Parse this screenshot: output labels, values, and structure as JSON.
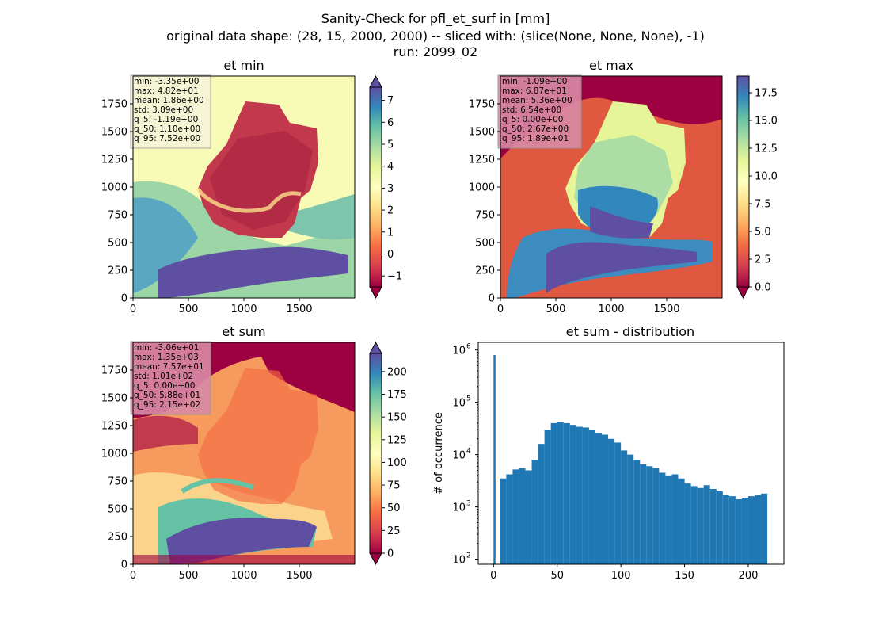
{
  "figure": {
    "title_lines": [
      "Sanity-Check for pfl_et_surf in [mm]",
      "original data shape: (28, 15, 2000, 2000) -- sliced with: (slice(None, None, None), -1)",
      "run: 2099_02"
    ]
  },
  "chart_data": [
    {
      "type": "heatmap",
      "title": "et min",
      "colormap": "Spectral",
      "x_ticks": [
        0,
        500,
        1000,
        1500
      ],
      "y_ticks": [
        0,
        250,
        500,
        750,
        1000,
        1250,
        1500,
        1750
      ],
      "xlim": [
        0,
        2000
      ],
      "ylim": [
        0,
        2000
      ],
      "colorbar": {
        "range": [
          -1.5,
          7.6
        ],
        "ticks": [
          -1,
          0,
          1,
          2,
          3,
          4,
          5,
          6,
          7
        ]
      },
      "stats_box_color": "#f5f5dc",
      "stats": [
        "min: -3.35e+00",
        "max: 4.82e+01",
        "mean: 1.86e+00",
        "std: 3.89e+00",
        "q_5: -1.19e+00",
        "q_50: 1.10e+00",
        "q_95: 7.52e+00"
      ]
    },
    {
      "type": "heatmap",
      "title": "et max",
      "colormap": "Spectral",
      "x_ticks": [
        0,
        500,
        1000,
        1500
      ],
      "y_ticks": [
        0,
        250,
        500,
        750,
        1000,
        1250,
        1500,
        1750
      ],
      "xlim": [
        0,
        2000
      ],
      "ylim": [
        0,
        2000
      ],
      "colorbar": {
        "range": [
          0,
          19
        ],
        "ticks": [
          "0.0",
          "2.5",
          "5.0",
          "7.5",
          "10.0",
          "12.5",
          "15.0",
          "17.5"
        ]
      },
      "stats_box_color": "#d98aa6",
      "stats": [
        "min: -1.09e+00",
        "max: 6.87e+01",
        "mean: 5.36e+00",
        "std: 6.54e+00",
        "q_5: 0.00e+00",
        "q_50: 2.67e+00",
        "q_95: 1.89e+01"
      ]
    },
    {
      "type": "heatmap",
      "title": "et sum",
      "colormap": "Spectral",
      "x_ticks": [
        0,
        500,
        1000,
        1500
      ],
      "y_ticks": [
        0,
        250,
        500,
        750,
        1000,
        1250,
        1500,
        1750
      ],
      "xlim": [
        0,
        2000
      ],
      "ylim": [
        0,
        2000
      ],
      "colorbar": {
        "range": [
          0,
          220
        ],
        "ticks": [
          0,
          25,
          50,
          75,
          100,
          125,
          150,
          175,
          200
        ]
      },
      "stats_box_color": "#d98aa6",
      "stats": [
        "min: -3.06e+01",
        "max: 1.35e+03",
        "mean: 7.57e+01",
        "std: 1.01e+02",
        "q_5: 0.00e+00",
        "q_50: 5.88e+01",
        "q_95: 2.15e+02"
      ]
    },
    {
      "type": "bar",
      "title": "et sum - distribution",
      "ylabel": "# of occurrence",
      "yscale": "log",
      "xlim": [
        -12,
        228
      ],
      "ylim": [
        80,
        1400000
      ],
      "x_ticks": [
        0,
        50,
        100,
        150,
        200
      ],
      "y_ticks": [
        {
          "exp": 2,
          "value": 100
        },
        {
          "exp": 3,
          "value": 1000
        },
        {
          "exp": 4,
          "value": 10000
        },
        {
          "exp": 5,
          "value": 100000
        },
        {
          "exp": 6,
          "value": 1000000
        }
      ],
      "bar_color": "#1f77b4",
      "bins": {
        "x": [
          0,
          5,
          10,
          15,
          20,
          25,
          30,
          35,
          40,
          45,
          50,
          55,
          60,
          65,
          70,
          75,
          80,
          85,
          90,
          95,
          100,
          105,
          110,
          115,
          120,
          125,
          130,
          135,
          140,
          145,
          150,
          155,
          160,
          165,
          170,
          175,
          180,
          185,
          190,
          195,
          200,
          205,
          210
        ],
        "counts": [
          800000,
          3500,
          4200,
          5200,
          5500,
          5000,
          8000,
          16000,
          30000,
          40000,
          42000,
          40000,
          37000,
          34000,
          33000,
          30000,
          26000,
          24000,
          20000,
          17000,
          12000,
          10000,
          8000,
          6500,
          6000,
          5500,
          4500,
          4000,
          4200,
          3500,
          2800,
          2500,
          2300,
          2600,
          2200,
          2000,
          1700,
          1600,
          1400,
          1500,
          1600,
          1700,
          1800
        ]
      }
    }
  ]
}
